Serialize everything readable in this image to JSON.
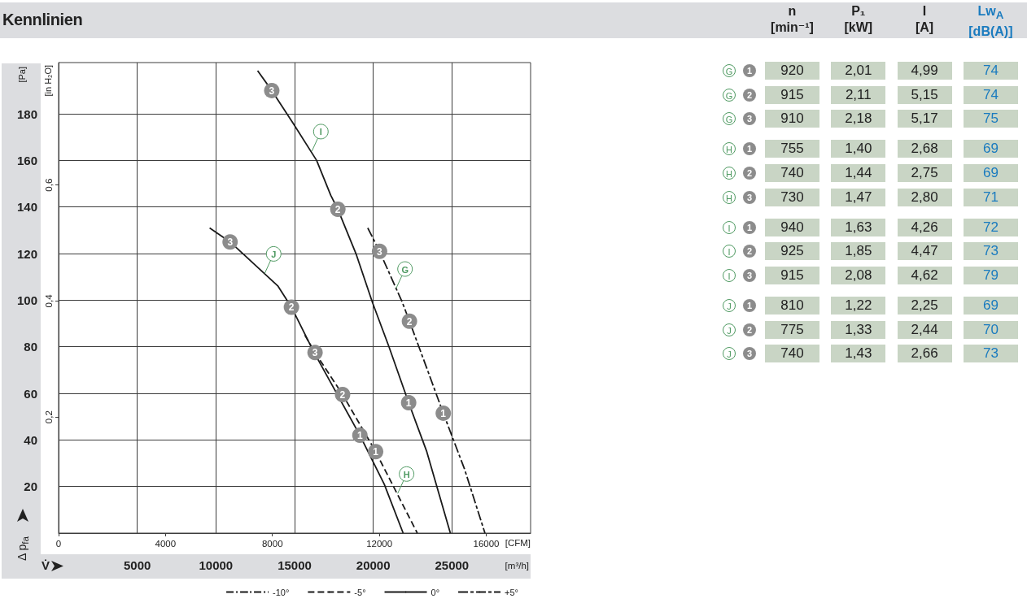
{
  "chart_data": [
    {
      "type": "line",
      "title": "Kennlinien",
      "xlabel": "[m³/h]",
      "x2label": "[CFM]",
      "ylabel": "[Pa]",
      "y2label": "[in H₂O]",
      "annotations": [
        "Δ p$_{fa}$",
        "V̇",
        {
          "text": "G",
          "x": 21450,
          "y": 105
        },
        {
          "text": "H",
          "x": 21550,
          "y": 17
        },
        {
          "text": "I",
          "x": 16100,
          "y": 164
        },
        {
          "text": "J",
          "x": 13100,
          "y": 111.5
        },
        {
          "text": "1",
          "x": 24450,
          "y": 51.5
        },
        {
          "text": "2",
          "x": 22300,
          "y": 91
        },
        {
          "text": "3",
          "x": 20400,
          "y": 121
        },
        {
          "text": "1",
          "x": 20150,
          "y": 35
        },
        {
          "text": "2",
          "x": 18050,
          "y": 59.5
        },
        {
          "text": "3",
          "x": 16300,
          "y": 77.5
        },
        {
          "text": "1",
          "x": 22250,
          "y": 56
        },
        {
          "text": "2",
          "x": 17750,
          "y": 139
        },
        {
          "text": "3",
          "x": 13550,
          "y": 190
        },
        {
          "text": "1",
          "x": 19150,
          "y": 42
        },
        {
          "text": "2",
          "x": 14800,
          "y": 97
        },
        {
          "text": "3",
          "x": 10900,
          "y": 125
        }
      ],
      "xlim": [
        0,
        30000
      ],
      "xticks": [
        5000,
        10000,
        15000,
        20000,
        25000
      ],
      "x2lim": [
        0,
        17660
      ],
      "x2ticks": [
        0,
        4000,
        8000,
        12000,
        16000
      ],
      "ylim": [
        0,
        202
      ],
      "yticks": [
        20,
        40,
        60,
        80,
        100,
        120,
        140,
        160,
        180
      ],
      "y2lim": [
        0,
        0.811
      ],
      "y2ticks": [
        {
          "value": 0.2,
          "label": "0,2"
        },
        {
          "value": 0.4,
          "label": "0,4"
        },
        {
          "value": 0.6,
          "label": "0,6"
        }
      ],
      "grid": true,
      "legend": "bottom right",
      "series": [
        {
          "name": "-10°",
          "line_style": "dashdot",
          "color": "#1a1a1a"
        },
        {
          "name": "-5°",
          "line_style": "dashed",
          "color": "#1a1a1a",
          "x": [
            15650,
            16300,
            18050,
            20150,
            22800
          ],
          "values": [
            85,
            77.5,
            59.5,
            35,
            0
          ]
        },
        {
          "name": "0°",
          "line_style": "solid",
          "color": "#1a1a1a",
          "x": [
            12650,
            13550,
            14900,
            16400,
            17300,
            17750,
            18900,
            19950,
            21000,
            22250,
            23400,
            24900
          ],
          "values": [
            198.5,
            190,
            176,
            160,
            145,
            139,
            120,
            99,
            80,
            56,
            35,
            0
          ]
        },
        {
          "line_style": "solid",
          "color": "#1a1a1a",
          "x": [
            9600,
            10900,
            13950,
            14800,
            16200,
            19150,
            20700,
            21900
          ],
          "values": [
            131,
            125,
            106,
            97,
            78,
            42,
            21,
            0
          ]
        },
        {
          "name": "+5°",
          "line_style": "longdash",
          "color": "#1a1a1a",
          "x": [
            19650,
            20400,
            21850,
            22300,
            23500,
            24450,
            25800,
            27100
          ],
          "values": [
            131,
            121,
            99,
            91,
            69,
            51.5,
            27.5,
            0
          ]
        }
      ]
    },
    {
      "type": "other",
      "categories": [
        "n\n[min⁻¹]",
        "P₁\n[kW]",
        "I\n[A]",
        "Lw$_{A}$\n[dB(A)]"
      ],
      "colors": [
        "#222222",
        "#222222",
        "#222222",
        "#1a7bbf"
      ],
      "y_categories": [
        "G 1",
        "G 2",
        "G 3",
        "H 1",
        "H 2",
        "H 3",
        "I 1",
        "I 2",
        "I 3",
        "J 1",
        "J 2",
        "J 3"
      ],
      "cell_labels": [
        [
          "920",
          "2,01",
          "4,99",
          "74"
        ],
        [
          "915",
          "2,11",
          "5,15",
          "74"
        ],
        [
          "910",
          "2,18",
          "5,17",
          "75"
        ],
        [
          "755",
          "1,40",
          "2,68",
          "69"
        ],
        [
          "740",
          "1,44",
          "2,75",
          "69"
        ],
        [
          "730",
          "1,47",
          "2,80",
          "71"
        ],
        [
          "940",
          "1,63",
          "4,26",
          "72"
        ],
        [
          "925",
          "1,85",
          "4,47",
          "73"
        ],
        [
          "915",
          "2,08",
          "4,62",
          "79"
        ],
        [
          "810",
          "1,22",
          "2,25",
          "69"
        ],
        [
          "775",
          "1,33",
          "2,44",
          "70"
        ],
        [
          "740",
          "1,43",
          "2,66",
          "73"
        ]
      ]
    }
  ]
}
